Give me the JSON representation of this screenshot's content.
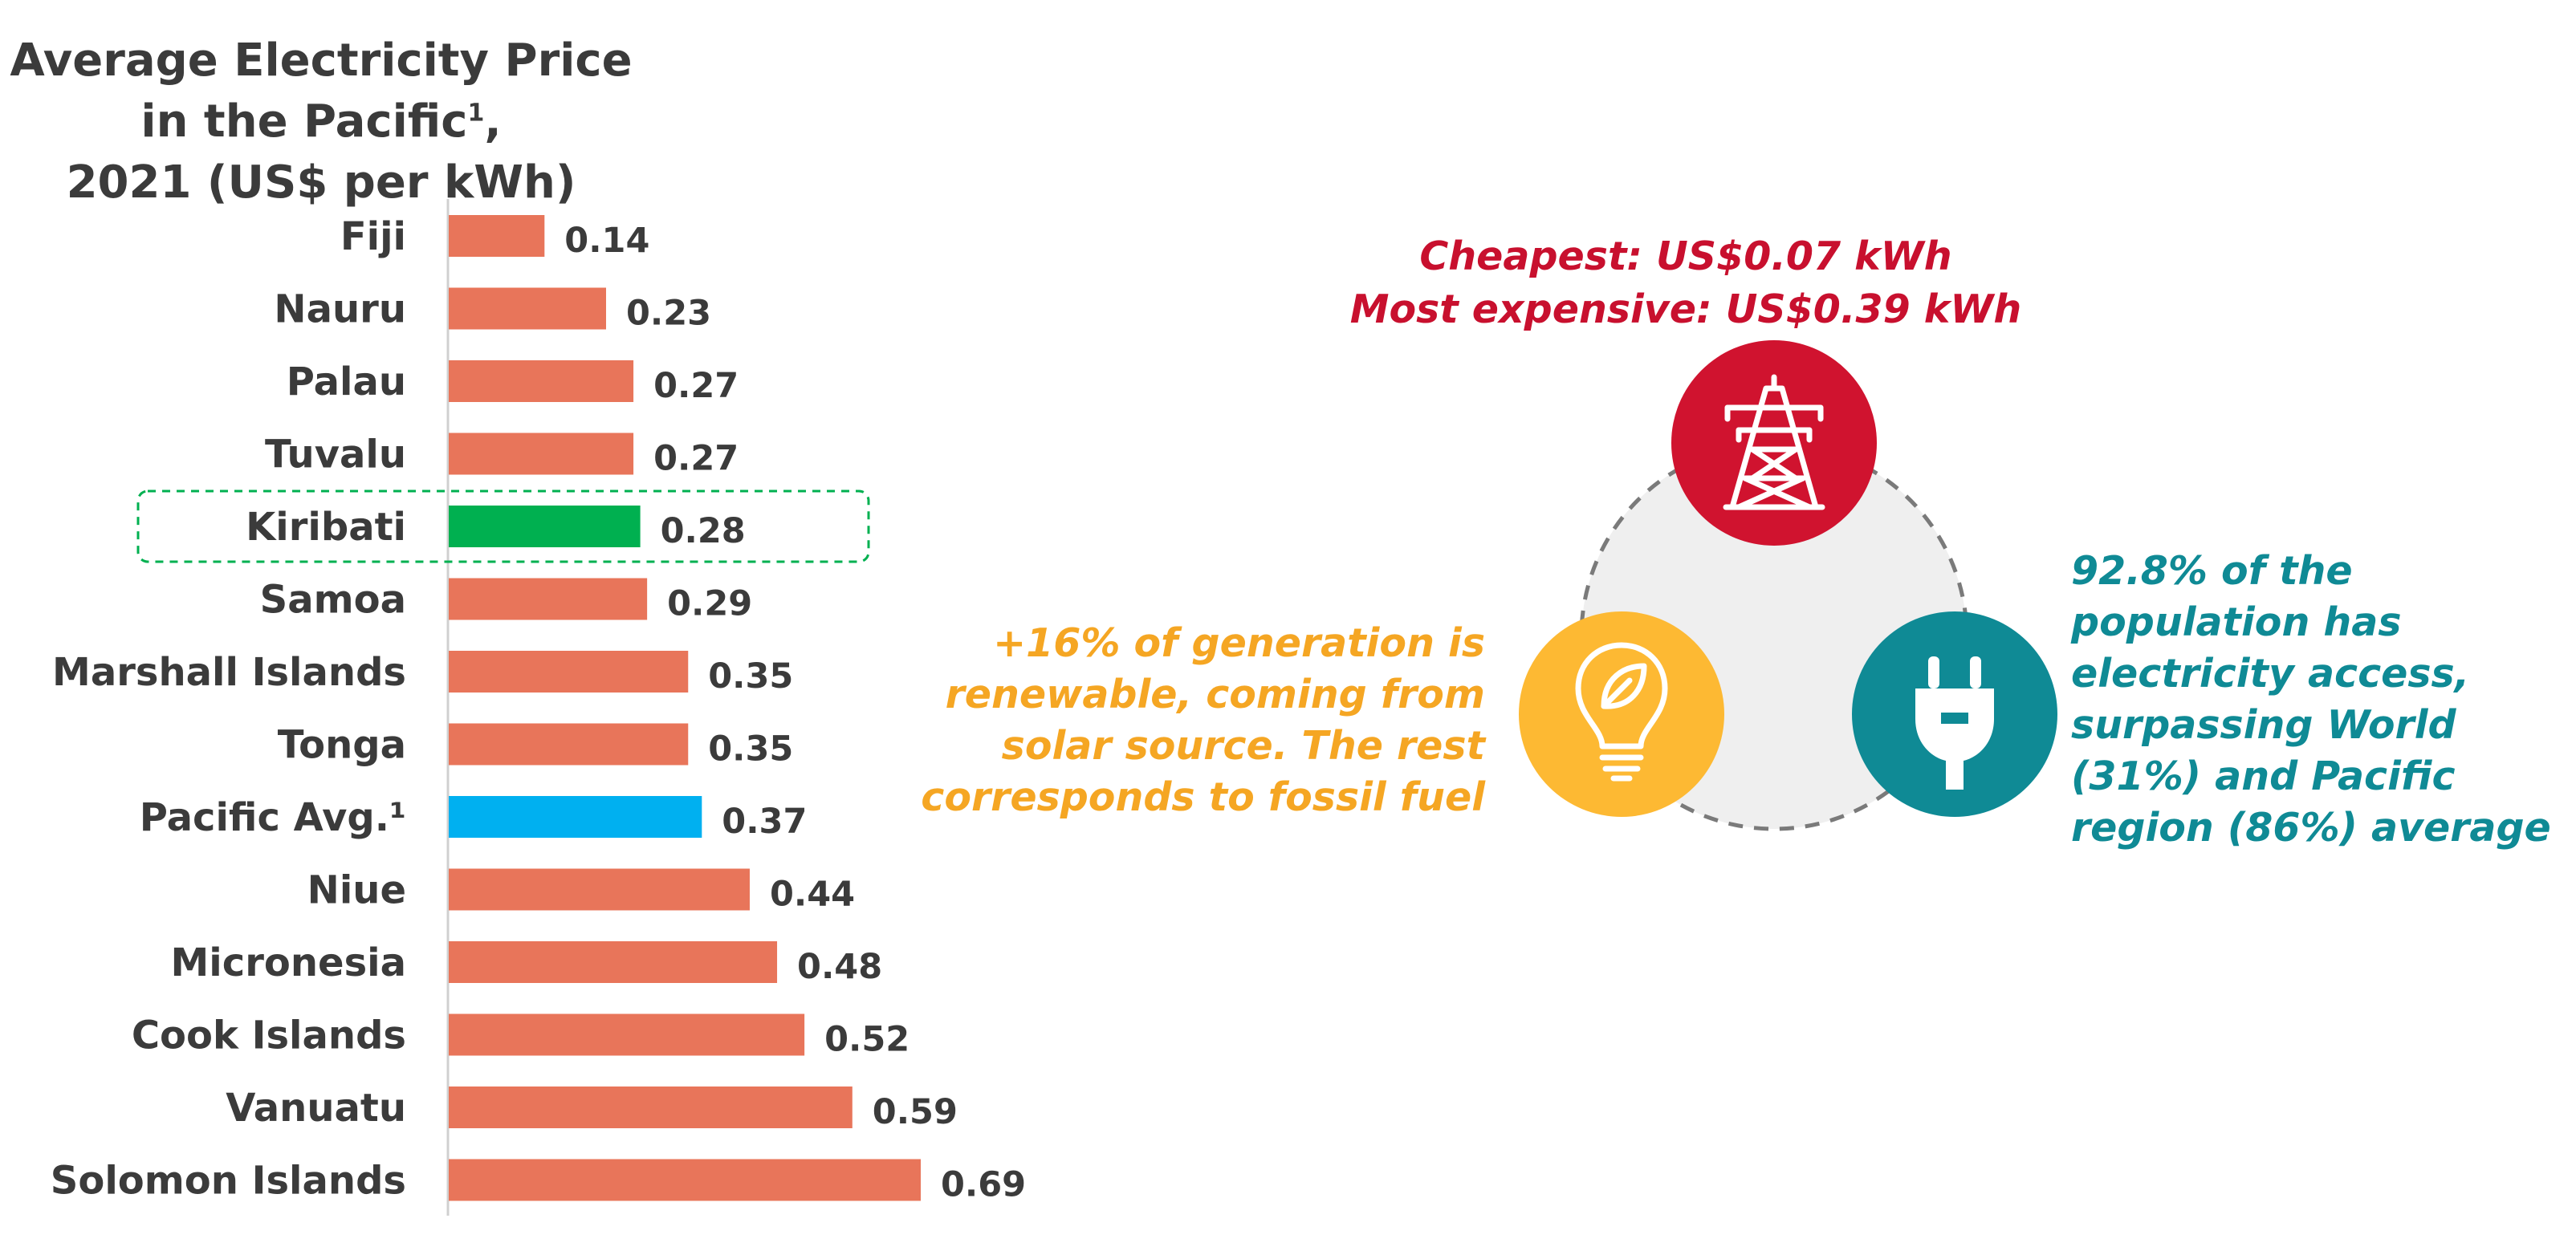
{
  "chart_data": {
    "type": "bar",
    "orientation": "horizontal",
    "title_main": "Average Electricity Price in the Pacific",
    "title_sup": "1",
    "title_suffix": ",",
    "title_line2": "2021 (US$ per kWh)",
    "categories": [
      "Fiji",
      "Nauru",
      "Palau",
      "Tuvalu",
      "Kiribati",
      "Samoa",
      "Marshall Islands",
      "Tonga",
      "Pacific Avg.¹",
      "Niue",
      "Micronesia",
      "Cook Islands",
      "Vanuatu",
      "Solomon Islands"
    ],
    "values": [
      0.14,
      0.23,
      0.27,
      0.27,
      0.28,
      0.29,
      0.35,
      0.35,
      0.37,
      0.44,
      0.48,
      0.52,
      0.59,
      0.69
    ],
    "value_labels": [
      "0.14",
      "0.23",
      "0.27",
      "0.27",
      "0.28",
      "0.29",
      "0.35",
      "0.35",
      "0.37",
      "0.44",
      "0.48",
      "0.52",
      "0.59",
      "0.69"
    ],
    "highlight_category": "Kiribati",
    "average_category": "Pacific Avg.¹",
    "colors": {
      "default": "#e8755a",
      "highlight": "#00b050",
      "average": "#00b0f0",
      "highlight_box": "#00b050"
    },
    "xlim": [
      0,
      0.69
    ],
    "grid": false
  },
  "callouts": {
    "price": {
      "line1": "Cheapest: US$0.07 kWh",
      "line2": "Most expensive: US$0.39 kWh",
      "color": "#c8102e"
    },
    "renewable": {
      "lines": [
        "+16% of generation is",
        "renewable, coming from",
        "solar source. The rest",
        "corresponds to fossil fuel"
      ],
      "color": "#f5a623"
    },
    "access": {
      "lines": [
        "92.8% of the",
        "population has",
        "electricity access,",
        "surpassing World",
        "(31%) and Pacific",
        "region (86%) average"
      ],
      "color": "#0f8a95"
    }
  },
  "icons": {
    "top": {
      "name": "transmission-tower-icon",
      "color": "#d0132f"
    },
    "left": {
      "name": "lightbulb-leaf-icon",
      "color": "#fdb933"
    },
    "right": {
      "name": "power-plug-icon",
      "color": "#0f8a95"
    }
  }
}
